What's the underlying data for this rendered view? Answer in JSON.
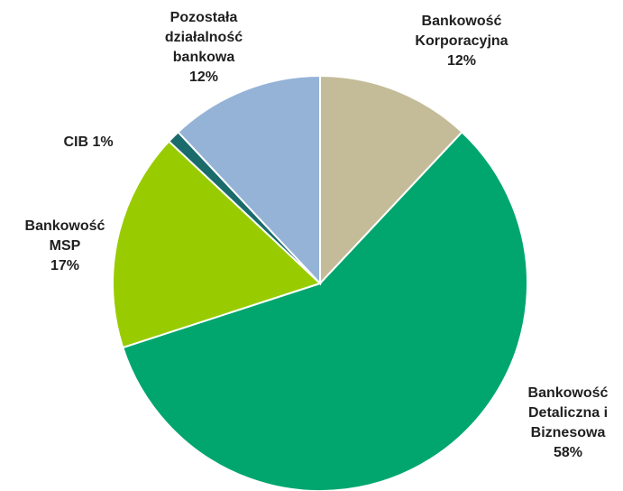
{
  "chart_data": {
    "type": "pie",
    "start_angle_deg": 0,
    "direction": "clockwise",
    "slices": [
      {
        "name": "Bankowość Korporacyjna",
        "value": 12,
        "label_lines": [
          "Bankowość",
          "Korporacyjna",
          "12%"
        ],
        "color": "#C4BC98"
      },
      {
        "name": "Bankowość Detaliczna i Biznesowa",
        "value": 58,
        "label_lines": [
          "Bankowość",
          "Detaliczna i",
          "Biznesowa",
          "58%"
        ],
        "color": "#00A66E"
      },
      {
        "name": "Bankowość MSP",
        "value": 17,
        "label_lines": [
          "Bankowość",
          "MSP",
          "17%"
        ],
        "color": "#99CC00"
      },
      {
        "name": "CIB",
        "value": 1,
        "label_lines": [
          "CIB 1%"
        ],
        "color": "#1B6B6B"
      },
      {
        "name": "Pozostała działalność bankowa",
        "value": 12,
        "label_lines": [
          "Pozostała",
          "działalność",
          "bankowa",
          "12%"
        ],
        "color": "#95B3D7"
      }
    ]
  }
}
